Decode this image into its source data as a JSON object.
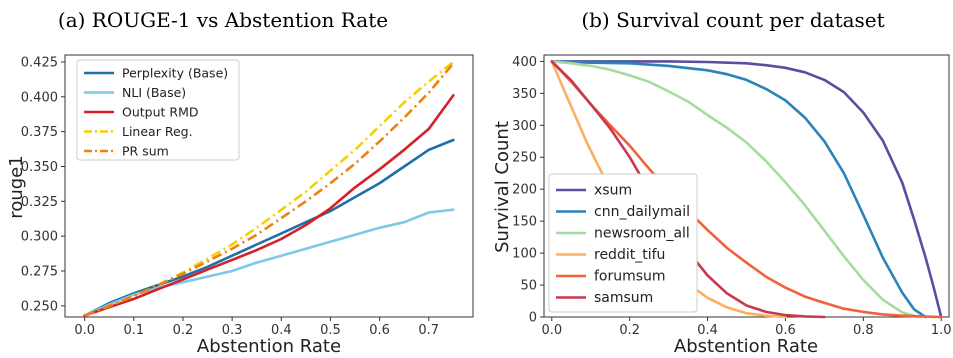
{
  "chart_data": [
    {
      "type": "line",
      "title": "(a) ROUGE-1 vs Abstention Rate",
      "xlabel": "Abstention Rate",
      "ylabel": "rouge1",
      "xlim": [
        -0.04,
        0.79
      ],
      "ylim": [
        0.242,
        0.43
      ],
      "xticks": [
        0.0,
        0.1,
        0.2,
        0.3,
        0.4,
        0.5,
        0.6,
        0.7
      ],
      "xtick_labels": [
        "0.0",
        "0.1",
        "0.2",
        "0.3",
        "0.4",
        "0.5",
        "0.6",
        "0.7"
      ],
      "yticks": [
        0.25,
        0.275,
        0.3,
        0.325,
        0.35,
        0.375,
        0.4,
        0.425
      ],
      "ytick_labels": [
        "0.250",
        "0.275",
        "0.300",
        "0.325",
        "0.350",
        "0.375",
        "0.400",
        "0.425"
      ],
      "grid": false,
      "legend_position": "top-left",
      "series": [
        {
          "name": "Perplexity (Base)",
          "color": "#1f6fa8",
          "dash": "solid",
          "x": [
            0.0,
            0.05,
            0.1,
            0.15,
            0.2,
            0.25,
            0.3,
            0.35,
            0.4,
            0.45,
            0.5,
            0.55,
            0.6,
            0.65,
            0.7,
            0.75
          ],
          "y": [
            0.243,
            0.252,
            0.259,
            0.265,
            0.271,
            0.278,
            0.286,
            0.294,
            0.302,
            0.31,
            0.318,
            0.328,
            0.338,
            0.35,
            0.362,
            0.369
          ]
        },
        {
          "name": "NLI (Base)",
          "color": "#7ec8e8",
          "dash": "solid",
          "x": [
            0.0,
            0.05,
            0.1,
            0.15,
            0.2,
            0.25,
            0.3,
            0.35,
            0.4,
            0.45,
            0.5,
            0.55,
            0.6,
            0.65,
            0.7,
            0.75
          ],
          "y": [
            0.243,
            0.251,
            0.258,
            0.263,
            0.267,
            0.271,
            0.275,
            0.281,
            0.286,
            0.291,
            0.296,
            0.301,
            0.306,
            0.31,
            0.317,
            0.319
          ]
        },
        {
          "name": "Output RMD",
          "color": "#d62026",
          "dash": "solid",
          "x": [
            0.0,
            0.05,
            0.1,
            0.15,
            0.2,
            0.25,
            0.3,
            0.35,
            0.4,
            0.45,
            0.5,
            0.55,
            0.6,
            0.65,
            0.7,
            0.75
          ],
          "y": [
            0.243,
            0.249,
            0.255,
            0.262,
            0.269,
            0.276,
            0.283,
            0.29,
            0.298,
            0.308,
            0.32,
            0.335,
            0.348,
            0.362,
            0.377,
            0.401
          ]
        },
        {
          "name": "Linear Reg.",
          "color": "#f5d000",
          "dash": "dashdot",
          "x": [
            0.0,
            0.05,
            0.1,
            0.15,
            0.2,
            0.25,
            0.3,
            0.35,
            0.4,
            0.45,
            0.5,
            0.55,
            0.6,
            0.65,
            0.7,
            0.75
          ],
          "y": [
            0.243,
            0.25,
            0.257,
            0.265,
            0.274,
            0.284,
            0.294,
            0.306,
            0.319,
            0.332,
            0.347,
            0.362,
            0.379,
            0.396,
            0.411,
            0.425
          ]
        },
        {
          "name": "PR sum",
          "color": "#f07f13",
          "dash": "dashdot",
          "x": [
            0.0,
            0.05,
            0.1,
            0.15,
            0.2,
            0.25,
            0.3,
            0.35,
            0.4,
            0.45,
            0.5,
            0.55,
            0.6,
            0.65,
            0.7,
            0.75
          ],
          "y": [
            0.243,
            0.25,
            0.257,
            0.265,
            0.273,
            0.282,
            0.291,
            0.301,
            0.313,
            0.325,
            0.338,
            0.352,
            0.368,
            0.385,
            0.403,
            0.424
          ]
        }
      ]
    },
    {
      "type": "line",
      "title": "(b) Survival count per dataset",
      "xlabel": "Abstention Rate",
      "ylabel": "Survival Count",
      "xlim": [
        -0.02,
        1.02
      ],
      "ylim": [
        0,
        410
      ],
      "xticks": [
        0.0,
        0.2,
        0.4,
        0.6,
        0.8,
        1.0
      ],
      "xtick_labels": [
        "0.0",
        "0.2",
        "0.4",
        "0.6",
        "0.8",
        "1.0"
      ],
      "yticks": [
        0,
        50,
        100,
        150,
        200,
        250,
        300,
        350,
        400
      ],
      "ytick_labels": [
        "0",
        "50",
        "100",
        "150",
        "200",
        "250",
        "300",
        "350",
        "400"
      ],
      "grid": false,
      "legend_position": "bottom-left",
      "series": [
        {
          "name": "xsum",
          "color": "#5b4ea0",
          "x": [
            0.0,
            0.1,
            0.2,
            0.3,
            0.4,
            0.5,
            0.55,
            0.6,
            0.65,
            0.7,
            0.75,
            0.8,
            0.85,
            0.9,
            0.93,
            0.96,
            0.98,
            1.0
          ],
          "y": [
            400,
            400,
            400,
            400,
            399,
            397,
            394,
            390,
            383,
            371,
            352,
            320,
            276,
            210,
            153,
            93,
            48,
            0
          ]
        },
        {
          "name": "cnn_dailymail",
          "color": "#2b83ba",
          "x": [
            0.0,
            0.1,
            0.2,
            0.3,
            0.4,
            0.45,
            0.5,
            0.55,
            0.6,
            0.65,
            0.7,
            0.75,
            0.8,
            0.85,
            0.9,
            0.93,
            0.96
          ],
          "y": [
            400,
            398,
            397,
            393,
            386,
            380,
            371,
            357,
            339,
            312,
            275,
            225,
            160,
            93,
            38,
            12,
            0
          ]
        },
        {
          "name": "newsroom_all",
          "color": "#a6dba0",
          "x": [
            0.0,
            0.05,
            0.1,
            0.15,
            0.2,
            0.25,
            0.3,
            0.35,
            0.4,
            0.45,
            0.5,
            0.55,
            0.6,
            0.65,
            0.7,
            0.75,
            0.8,
            0.85,
            0.9,
            0.94
          ],
          "y": [
            400,
            397,
            393,
            387,
            378,
            368,
            353,
            337,
            316,
            296,
            273,
            244,
            211,
            175,
            135,
            95,
            58,
            27,
            7,
            0
          ]
        },
        {
          "name": "reddit_tifu",
          "color": "#fdae61",
          "x": [
            0.0,
            0.03,
            0.06,
            0.09,
            0.12,
            0.15,
            0.18,
            0.2,
            0.25,
            0.3,
            0.35,
            0.4,
            0.45,
            0.5,
            0.55,
            0.6
          ],
          "y": [
            400,
            357,
            315,
            273,
            236,
            201,
            170,
            150,
            112,
            80,
            52,
            30,
            15,
            6,
            2,
            0
          ]
        },
        {
          "name": "forumsum",
          "color": "#f4603a",
          "x": [
            0.0,
            0.05,
            0.1,
            0.15,
            0.2,
            0.25,
            0.3,
            0.35,
            0.4,
            0.45,
            0.5,
            0.55,
            0.6,
            0.65,
            0.7,
            0.75,
            0.8,
            0.85,
            0.9,
            0.95,
            1.0
          ],
          "y": [
            400,
            368,
            333,
            300,
            268,
            232,
            198,
            166,
            136,
            108,
            85,
            63,
            46,
            32,
            22,
            13,
            8,
            4,
            2,
            1,
            0
          ]
        },
        {
          "name": "samsum",
          "color": "#c73a4e",
          "x": [
            0.0,
            0.05,
            0.1,
            0.15,
            0.2,
            0.25,
            0.3,
            0.35,
            0.4,
            0.45,
            0.5,
            0.55,
            0.6,
            0.65,
            0.7
          ],
          "y": [
            400,
            370,
            333,
            295,
            250,
            198,
            148,
            103,
            65,
            37,
            18,
            8,
            3,
            1,
            0
          ]
        }
      ]
    }
  ]
}
